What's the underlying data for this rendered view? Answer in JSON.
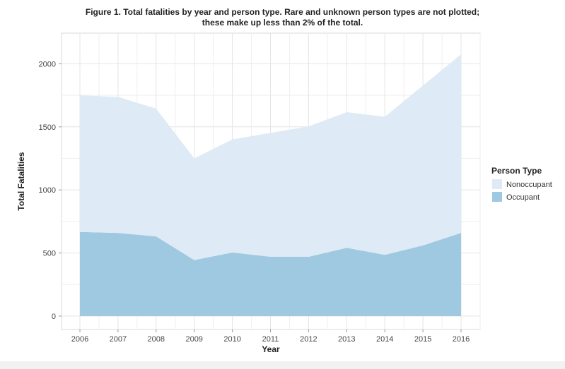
{
  "chart_data": {
    "type": "area",
    "stacked": true,
    "title_line1": "Figure 1. Total fatalities by year and person type. Rare and unknown person types are not plotted;",
    "title_line2": "these make up less than 2% of the total.",
    "xlabel": "Year",
    "ylabel": "Total Fatalities",
    "x": [
      2006,
      2007,
      2008,
      2009,
      2010,
      2011,
      2012,
      2013,
      2014,
      2015,
      2016
    ],
    "x_ticks": [
      "2006",
      "2007",
      "2008",
      "2009",
      "2010",
      "2011",
      "2012",
      "2013",
      "2014",
      "2015",
      "2016"
    ],
    "y_ticks": [
      "0",
      "500",
      "1000",
      "1500",
      "2000"
    ],
    "ylim": [
      0,
      2200
    ],
    "xlim": [
      2005.5,
      2016.5
    ],
    "grid": true,
    "legend": {
      "title": "Person Type",
      "placement": "right"
    },
    "series": [
      {
        "name": "Occupant",
        "color": "#9fc9e0",
        "values": [
          667,
          659,
          631,
          444,
          504,
          470,
          470,
          541,
          485,
          560,
          659
        ]
      },
      {
        "name": "Nonoccupant",
        "color": "#deeaf5",
        "values": [
          1083,
          1078,
          1013,
          806,
          896,
          982,
          1034,
          1075,
          1095,
          1267,
          1416
        ]
      }
    ]
  }
}
